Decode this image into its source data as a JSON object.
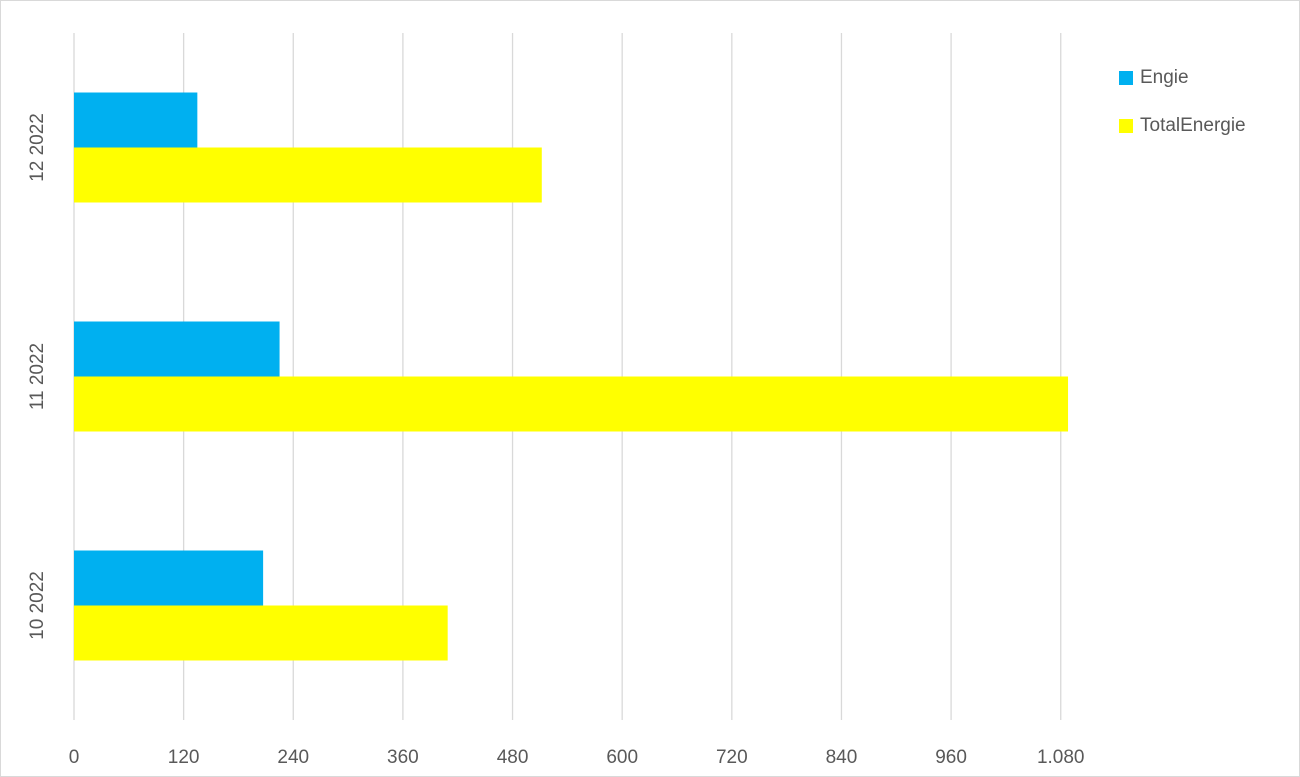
{
  "chart_data": {
    "type": "hbar",
    "categories": [
      "10 2022",
      "11 2022",
      "12 2022"
    ],
    "series": [
      {
        "name": "Engie",
        "color": "#00b0f0",
        "values": [
          207,
          225,
          135
        ]
      },
      {
        "name": "TotalEnergie",
        "color": "#ffff00",
        "values": [
          409,
          1088,
          512
        ]
      }
    ],
    "xlim": [
      0,
      1100
    ],
    "xticks": [
      0,
      120,
      240,
      360,
      480,
      600,
      720,
      840,
      960,
      {
        "value": 1080,
        "label": "1.080"
      }
    ],
    "grid": true,
    "legend": "top-right"
  }
}
